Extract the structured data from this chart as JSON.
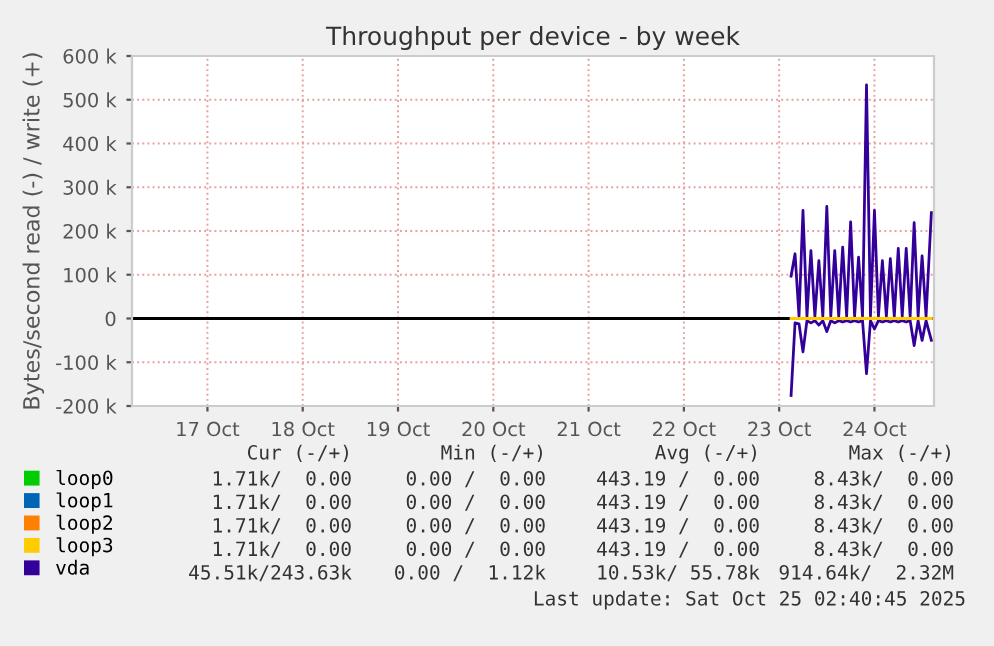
{
  "chart_data": {
    "type": "line",
    "title": "Throughput per device - by week",
    "ylabel": "Bytes/second read (-) / write (+)",
    "xlim": [
      "2025-10-16T17:00",
      "2025-10-25T03:00"
    ],
    "xticks": [
      {
        "value": "2025-10-17T12:00",
        "label": "17 Oct"
      },
      {
        "value": "2025-10-18T12:00",
        "label": "18 Oct"
      },
      {
        "value": "2025-10-19T12:00",
        "label": "19 Oct"
      },
      {
        "value": "2025-10-20T12:00",
        "label": "20 Oct"
      },
      {
        "value": "2025-10-21T12:00",
        "label": "21 Oct"
      },
      {
        "value": "2025-10-22T12:00",
        "label": "22 Oct"
      },
      {
        "value": "2025-10-23T12:00",
        "label": "23 Oct"
      },
      {
        "value": "2025-10-24T12:00",
        "label": "24 Oct"
      }
    ],
    "ylim": [
      -200000,
      600000
    ],
    "yticks": [
      {
        "value": -200000,
        "label": "-200 k"
      },
      {
        "value": -100000,
        "label": "-100 k"
      },
      0,
      {
        "value": 100000,
        "label": "100 k"
      },
      {
        "value": 200000,
        "label": "200 k"
      },
      {
        "value": 300000,
        "label": "300 k"
      },
      {
        "value": 400000,
        "label": "400 k"
      },
      {
        "value": 500000,
        "label": "500 k"
      },
      {
        "value": 600000,
        "label": "600 k"
      }
    ],
    "grid": true,
    "legend": "bottom left",
    "ref_lines": [
      {
        "axis": "y",
        "value": 0,
        "color": "#000000"
      }
    ],
    "series": [
      {
        "name": "loop0",
        "color": "#00cc00"
      },
      {
        "name": "loop1",
        "color": "#0066b3"
      },
      {
        "name": "loop2",
        "color": "#ff8000"
      },
      {
        "name": "loop3",
        "color": "#ffcc00",
        "x": [
          "2025-10-23T15:00",
          "2025-10-25T02:20"
        ],
        "values": [
          0,
          0
        ]
      },
      {
        "color": "#330099",
        "x": [
          "2025-10-23T15:00",
          "2025-10-23T16:00",
          "2025-10-23T17:00",
          "2025-10-23T18:00",
          "2025-10-23T19:00",
          "2025-10-23T20:00",
          "2025-10-23T21:00",
          "2025-10-23T22:00",
          "2025-10-23T23:00",
          "2025-10-24T00:00",
          "2025-10-24T01:00",
          "2025-10-24T02:00",
          "2025-10-24T03:00",
          "2025-10-24T04:00",
          "2025-10-24T05:00",
          "2025-10-24T06:00",
          "2025-10-24T07:00",
          "2025-10-24T08:00",
          "2025-10-24T09:00",
          "2025-10-24T10:00",
          "2025-10-24T11:00",
          "2025-10-24T12:00",
          "2025-10-24T13:00",
          "2025-10-24T14:00",
          "2025-10-24T15:00",
          "2025-10-24T16:00",
          "2025-10-24T17:00",
          "2025-10-24T18:00",
          "2025-10-24T19:00",
          "2025-10-24T20:00",
          "2025-10-24T21:00",
          "2025-10-24T22:00",
          "2025-10-24T23:00",
          "2025-10-25T00:00",
          "2025-10-25T01:00",
          "2025-10-25T02:20"
        ],
        "values": [
          -176000,
          -10000,
          -12000,
          -76000,
          -5000,
          -10000,
          -5000,
          -15000,
          -5000,
          -30000,
          -5000,
          -10000,
          -5000,
          -8000,
          -5000,
          -8000,
          -5000,
          -8000,
          -5000,
          -126000,
          -5000,
          -24000,
          -5000,
          -8000,
          -5000,
          -8000,
          -5000,
          -8000,
          -5000,
          -8000,
          -5000,
          -62000,
          -5000,
          -50000,
          -5000,
          -50000
        ]
      },
      {
        "name": "vda",
        "color": "#330099",
        "x": [
          "2025-10-23T15:00",
          "2025-10-23T16:00",
          "2025-10-23T17:00",
          "2025-10-23T18:00",
          "2025-10-23T19:00",
          "2025-10-23T20:00",
          "2025-10-23T21:00",
          "2025-10-23T22:00",
          "2025-10-23T23:00",
          "2025-10-24T00:00",
          "2025-10-24T01:00",
          "2025-10-24T02:00",
          "2025-10-24T03:00",
          "2025-10-24T04:00",
          "2025-10-24T05:00",
          "2025-10-24T06:00",
          "2025-10-24T07:00",
          "2025-10-24T08:00",
          "2025-10-24T09:00",
          "2025-10-24T10:00",
          "2025-10-24T11:00",
          "2025-10-24T12:00",
          "2025-10-24T13:00",
          "2025-10-24T14:00",
          "2025-10-24T15:00",
          "2025-10-24T16:00",
          "2025-10-24T17:00",
          "2025-10-24T18:00",
          "2025-10-24T19:00",
          "2025-10-24T20:00",
          "2025-10-24T21:00",
          "2025-10-24T22:00",
          "2025-10-24T23:00",
          "2025-10-25T00:00",
          "2025-10-25T01:00",
          "2025-10-25T02:20"
        ],
        "values": [
          97000,
          148000,
          5000,
          247000,
          5000,
          155000,
          5000,
          132000,
          5000,
          256000,
          5000,
          155000,
          5000,
          163000,
          5000,
          221000,
          5000,
          140000,
          5000,
          534000,
          5000,
          247000,
          5000,
          132000,
          5000,
          137000,
          5000,
          160000,
          5000,
          160000,
          5000,
          219000,
          5000,
          143000,
          5000,
          242000
        ]
      }
    ],
    "annotations": [
      "Cur (-/+)",
      "Min (-/+)",
      "Avg (-/+)",
      "Max (-/+)",
      "1.71k/  0.00",
      "0.00 /  0.00",
      "443.19 /  0.00",
      "8.43k/  0.00",
      "1.71k/  0.00",
      "0.00 /  0.00",
      "443.19 /  0.00",
      "8.43k/  0.00",
      "1.71k/  0.00",
      "0.00 /  0.00",
      "443.19 /  0.00",
      "8.43k/  0.00",
      "1.71k/  0.00",
      "0.00 /  0.00",
      "443.19 /  0.00",
      "8.43k/  0.00",
      "45.51k/243.63k",
      "0.00 /  1.12k",
      "10.53k/ 55.78k",
      "914.64k/  2.32M",
      "Last update: Sat Oct 25 02:40:45 2025"
    ]
  }
}
